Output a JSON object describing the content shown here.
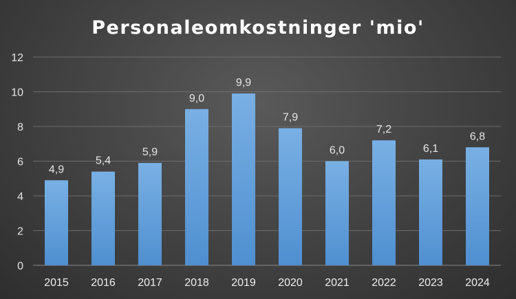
{
  "chart_data": {
    "type": "bar",
    "title": "Personaleomkostninger 'mio'",
    "xlabel": "",
    "ylabel": "",
    "categories": [
      "2015",
      "2016",
      "2017",
      "2018",
      "2019",
      "2020",
      "2021",
      "2022",
      "2023",
      "2024"
    ],
    "values": [
      4.9,
      5.4,
      5.9,
      9.0,
      9.9,
      7.9,
      6.0,
      7.2,
      6.1,
      6.8
    ],
    "value_labels": [
      "4,9",
      "5,4",
      "5,9",
      "9,0",
      "9,9",
      "7,9",
      "6,0",
      "7,2",
      "6,1",
      "6,8"
    ],
    "ylim": [
      0,
      12
    ],
    "yticks": [
      0,
      2,
      4,
      6,
      8,
      10,
      12
    ],
    "ytick_labels": [
      "0",
      "2",
      "4",
      "6",
      "8",
      "10",
      "12"
    ],
    "grid": true,
    "legend": "none",
    "bar_color": "#5b9bd5",
    "background_color": "#3c3c3c"
  }
}
